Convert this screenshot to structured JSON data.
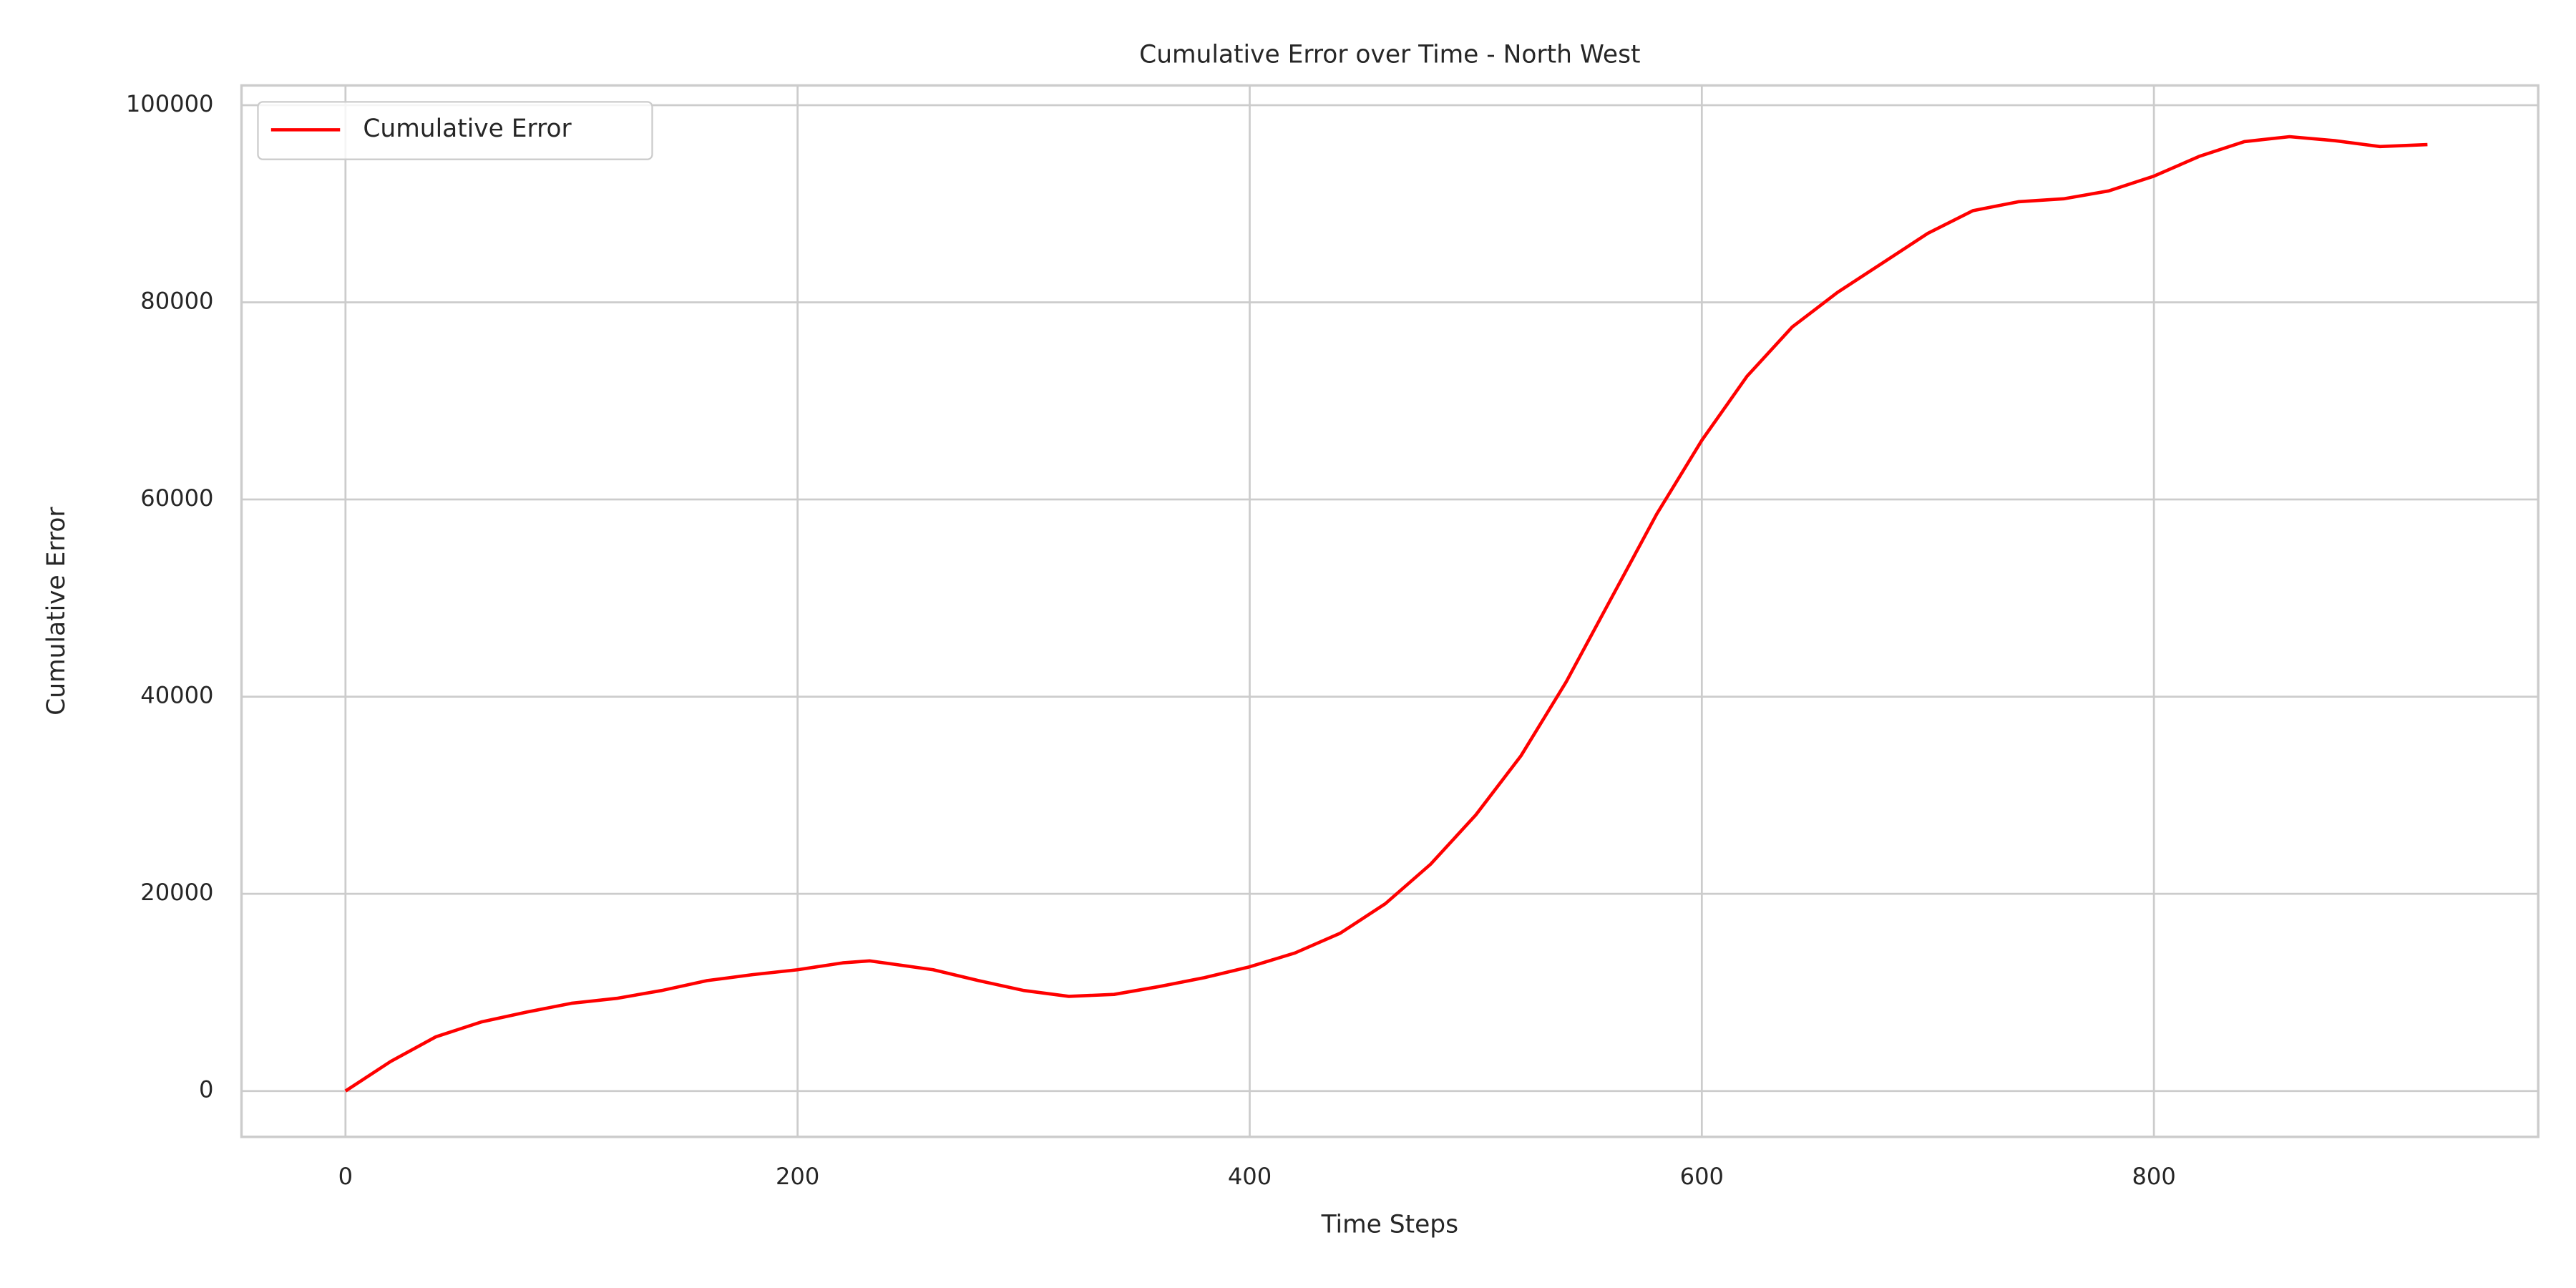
{
  "chart_data": {
    "type": "line",
    "title": "Cumulative Error over Time - North West",
    "xlabel": "Time Steps",
    "ylabel": "Cumulative Error",
    "x": [
      0,
      20,
      40,
      60,
      80,
      100,
      120,
      140,
      160,
      180,
      200,
      220,
      232,
      260,
      280,
      300,
      320,
      340,
      360,
      380,
      400,
      420,
      440,
      460,
      480,
      500,
      520,
      540,
      560,
      580,
      600,
      620,
      640,
      660,
      680,
      700,
      720,
      740,
      760,
      780,
      800,
      820,
      840,
      860,
      880,
      900,
      921
    ],
    "series": [
      {
        "name": "Cumulative Error",
        "color": "#ff0000",
        "values": [
          0,
          3000,
          5500,
          7000,
          8000,
          8900,
          9400,
          10200,
          11200,
          11800,
          12300,
          13000,
          13200,
          12300,
          11200,
          10200,
          9600,
          9800,
          10600,
          11500,
          12600,
          14000,
          16000,
          19000,
          23000,
          28000,
          34000,
          41500,
          50000,
          58500,
          66000,
          72500,
          77500,
          81000,
          84000,
          87000,
          89300,
          90200,
          90500,
          91300,
          92800,
          94800,
          96300,
          96800,
          96400,
          95800,
          96000
        ]
      }
    ],
    "xlim": [
      -46,
      970
    ],
    "ylim": [
      -4650,
      102000
    ],
    "xticks": [
      0,
      200,
      400,
      600,
      800
    ],
    "yticks": [
      0,
      20000,
      40000,
      60000,
      80000,
      100000
    ],
    "grid": true,
    "legend": "upper-left"
  }
}
